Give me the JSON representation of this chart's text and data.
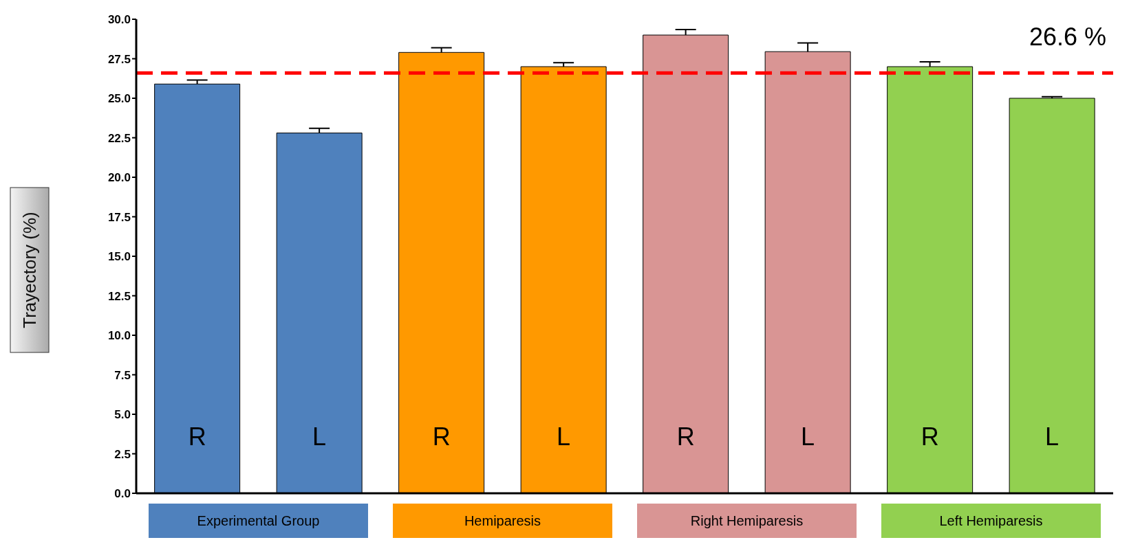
{
  "chart_data": {
    "type": "bar",
    "ylabel": "Trayectory (%)",
    "categories": [
      "R",
      "L",
      "R",
      "L",
      "R",
      "L",
      "R",
      "L"
    ],
    "values": [
      25.9,
      22.8,
      27.9,
      27.0,
      29.0,
      27.95,
      27.0,
      25.0
    ],
    "colors": [
      "#4f81bd",
      "#4f81bd",
      "#ff9900",
      "#ff9900",
      "#d99594",
      "#d99594",
      "#92d050",
      "#92d050"
    ],
    "errors": [
      [
        25.9,
        26.15
      ],
      [
        22.8,
        23.1
      ],
      [
        27.9,
        28.2
      ],
      [
        27.0,
        27.25
      ],
      [
        29.0,
        29.35
      ],
      [
        27.95,
        28.5
      ],
      [
        27.0,
        27.3
      ],
      [
        25.0,
        25.1
      ]
    ],
    "ylim": [
      0,
      30
    ],
    "yticks": [
      {
        "value": 0,
        "label": "0.0"
      },
      {
        "value": 2.5,
        "label": "2.5"
      },
      {
        "value": 5,
        "label": "5.0"
      },
      {
        "value": 7.5,
        "label": "7.5"
      },
      {
        "value": 10,
        "label": "10.0"
      },
      {
        "value": 12.5,
        "label": "12.5"
      },
      {
        "value": 15,
        "label": "15.0"
      },
      {
        "value": 17.5,
        "label": "17.5"
      },
      {
        "value": 20,
        "label": "20.0"
      },
      {
        "value": 22.5,
        "label": "22.5"
      },
      {
        "value": 25,
        "label": "25.0"
      },
      {
        "value": 27.5,
        "label": "27.5"
      },
      {
        "value": 30,
        "label": "30.0"
      }
    ],
    "ref_lines": [
      {
        "axis": "y",
        "value": 26.6,
        "label": "26.6 %",
        "color": "#ff0000",
        "line_style": "dashed"
      }
    ],
    "annotations": [
      "Experimental Group",
      "Hemiparesis",
      "Right Hemiparesis",
      "Left Hemiparesis"
    ],
    "grid": false,
    "legend": false
  }
}
